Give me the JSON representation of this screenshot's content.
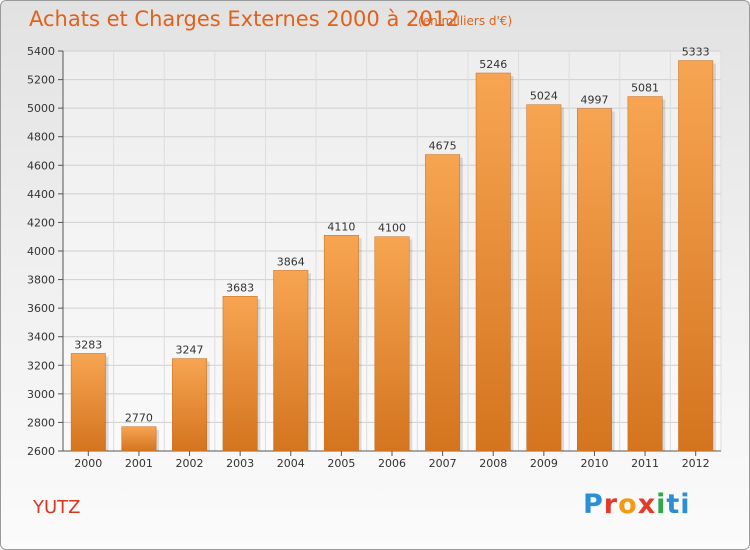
{
  "header": {
    "title": "Achats et Charges Externes 2000 à 2012",
    "unit": "(en milliers d'€)"
  },
  "footer": {
    "place": "YUTZ",
    "logo_letters": [
      "P",
      "r",
      "o",
      "x",
      "i",
      "ti"
    ]
  },
  "chart_data": {
    "type": "bar",
    "title": "Achats et Charges Externes 2000 à 2012",
    "subtitle": "(en milliers d'€)",
    "categories": [
      "2000",
      "2001",
      "2002",
      "2003",
      "2004",
      "2005",
      "2006",
      "2007",
      "2008",
      "2009",
      "2010",
      "2011",
      "2012"
    ],
    "values": [
      3283,
      2770,
      3247,
      3683,
      3864,
      4110,
      4100,
      4675,
      5246,
      5024,
      4997,
      5081,
      5333
    ],
    "ylim": [
      2600,
      5400
    ],
    "yticks": [
      2600,
      2800,
      3000,
      3200,
      3400,
      3600,
      3800,
      4000,
      4200,
      4400,
      4600,
      4800,
      5000,
      5200,
      5400
    ],
    "grid": true,
    "bar_color_top": "#f7a552",
    "bar_color_bottom": "#d4741f",
    "legend": "none"
  }
}
